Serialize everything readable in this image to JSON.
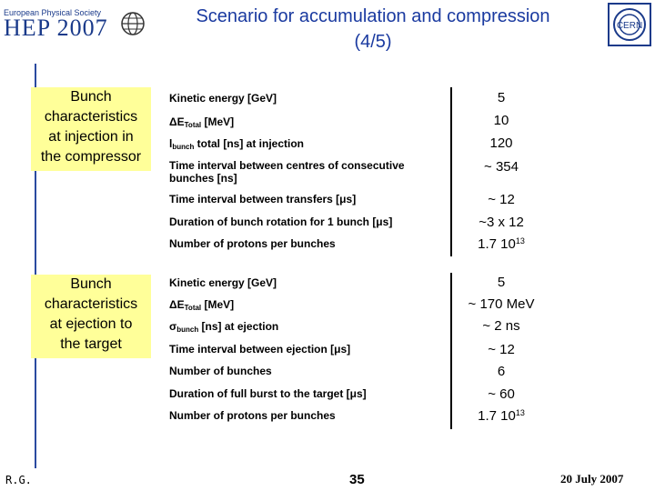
{
  "header": {
    "logo_top": "European Physical Society",
    "logo_main": "HEP 2007",
    "title_line1": "Scenario for accumulation and compression",
    "title_line2": "(4/5)",
    "cern_logo": "CERN"
  },
  "section1": {
    "heading_lines": [
      "Bunch",
      "characteristics",
      "at injection in",
      "the compressor"
    ],
    "rows": [
      {
        "label": "Kinetic energy [GeV]",
        "value": "5"
      },
      {
        "label_prefix": "ΔE",
        "label_sub": "Total",
        "label_suffix": " [MeV]",
        "value": "10"
      },
      {
        "label_prefix": "l",
        "label_sub": "bunch",
        "label_suffix": " total [ns] at injection",
        "value": "120"
      },
      {
        "label": "Time interval between centres of consecutive bunches [ns]",
        "value": "~ 354"
      },
      {
        "label": "Time interval between transfers [μs]",
        "value": "~ 12"
      },
      {
        "label": "Duration of bunch rotation for 1 bunch [μs]",
        "value": "~3 x 12"
      },
      {
        "label": "Number of protons per bunches",
        "value_base": "1.7 10",
        "value_exp": "13"
      }
    ]
  },
  "section2": {
    "heading_lines": [
      "Bunch",
      "characteristics",
      "at ejection to",
      "the target"
    ],
    "rows": [
      {
        "label": "Kinetic energy [GeV]",
        "value": "5"
      },
      {
        "label_prefix": "ΔE",
        "label_sub": "Total",
        "label_suffix": " [MeV]",
        "value": "~ 170 MeV"
      },
      {
        "label_prefix": "σ",
        "label_sub": "bunch",
        "label_suffix": " [ns] at ejection",
        "value": "~ 2 ns"
      },
      {
        "label": "Time interval between ejection [μs]",
        "value": "~ 12"
      },
      {
        "label": "Number of bunches",
        "value": "6"
      },
      {
        "label": "Duration of full burst to the target [μs]",
        "value": "~ 60"
      },
      {
        "label": "Number of protons per bunches",
        "value_base": "1.7 10",
        "value_exp": "13"
      }
    ]
  },
  "footer": {
    "author": "R.G.",
    "page": "35",
    "date": "20 July 2007"
  },
  "colors": {
    "title": "#1a3aa0",
    "box": "#ffff99",
    "logo": "#1a3a8a"
  }
}
